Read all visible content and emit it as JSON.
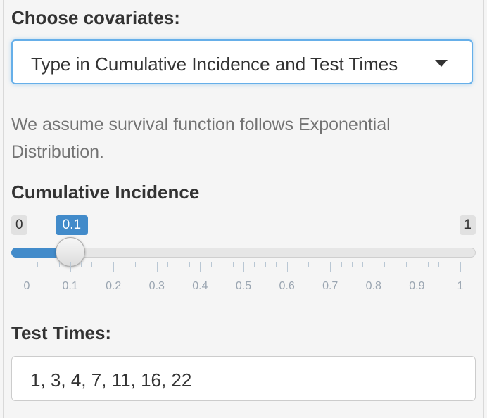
{
  "covariates": {
    "label": "Choose covariates:",
    "selected": "Type in Cumulative Incidence and Test Times",
    "caret_icon": "chevron-down-icon"
  },
  "help_text": "We assume survival function follows Exponential Distribution.",
  "cumulative_incidence": {
    "label": "Cumulative Incidence",
    "min": "0",
    "max": "1",
    "value": "0.1",
    "value_fraction": 0.1,
    "grid_labels": [
      "0",
      "0.1",
      "0.2",
      "0.3",
      "0.4",
      "0.5",
      "0.6",
      "0.7",
      "0.8",
      "0.9",
      "1"
    ]
  },
  "test_times": {
    "label": "Test Times:",
    "value": "1, 3, 4, 7, 11, 16, 22"
  },
  "colors": {
    "accent": "#428bca",
    "focus_border": "#66afe9",
    "help_text": "#737373"
  }
}
